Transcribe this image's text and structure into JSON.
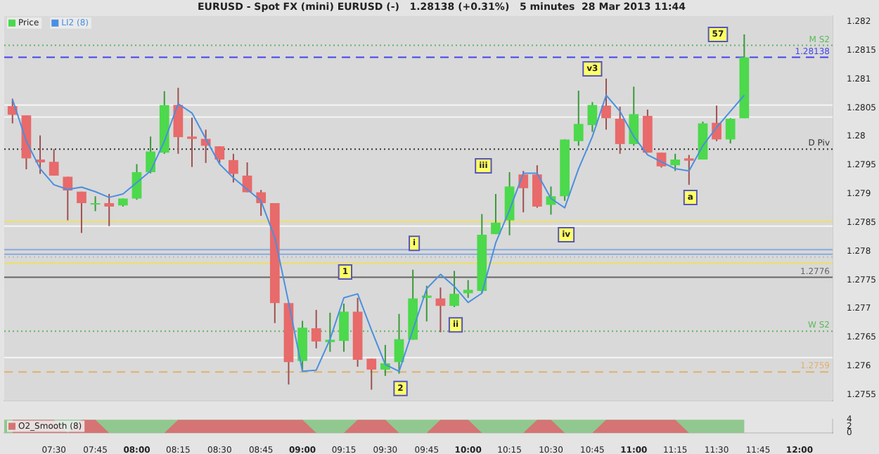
{
  "chart_data": [
    {
      "type": "candlestick",
      "title": "EURUSD - Spot FX (mini) EURUSD (-)   1.28138 (+0.31%)   5 minutes  28 Mar 2013 11:44",
      "x": [
        7.25,
        7.3333,
        7.4167,
        7.5,
        7.5833,
        7.6667,
        7.75,
        7.8333,
        7.9167,
        8,
        8.0833,
        8.1667,
        8.25,
        8.3333,
        8.4167,
        8.5,
        8.5833,
        8.6667,
        8.75,
        8.8333,
        8.9167,
        9,
        9.0833,
        9.1667,
        9.25,
        9.3333,
        9.4167,
        9.5,
        9.5833,
        9.6667,
        9.75,
        9.8333,
        9.9167,
        10,
        10.0833,
        10.1667,
        10.25,
        10.3333,
        10.4167,
        10.5,
        10.5833,
        10.6667,
        10.75,
        10.8333,
        10.9167,
        11,
        11.0833,
        11.1667,
        11.25,
        11.3333,
        11.4167,
        11.5,
        11.5833,
        11.6667
      ],
      "series": [
        {
          "type": "candlestick",
          "name": "Price",
          "ohlc": [
            [
              1.28053,
              1.28066,
              1.28023,
              1.28038
            ],
            [
              1.28037,
              1.28037,
              1.27943,
              1.27962
            ],
            [
              1.2796,
              1.28002,
              1.27935,
              1.27955
            ],
            [
              1.27956,
              1.27978,
              1.27932,
              1.27932
            ],
            [
              1.2793,
              1.2793,
              1.27854,
              1.27906
            ],
            [
              1.27904,
              1.27904,
              1.27832,
              1.27884
            ],
            [
              1.27884,
              1.27896,
              1.2787,
              1.27884
            ],
            [
              1.27884,
              1.279,
              1.27844,
              1.27878
            ],
            [
              1.2788,
              1.27892,
              1.27878,
              1.27892
            ],
            [
              1.27892,
              1.27952,
              1.2789,
              1.27938
            ],
            [
              1.27938,
              1.28,
              1.27936,
              1.27974
            ],
            [
              1.27972,
              1.28079,
              1.2797,
              1.28055
            ],
            [
              1.28055,
              1.28085,
              1.2797,
              1.27999
            ],
            [
              1.28,
              1.28033,
              1.27947,
              1.27996
            ],
            [
              1.27996,
              1.28012,
              1.27954,
              1.27984
            ],
            [
              1.27983,
              1.27983,
              1.27954,
              1.2796
            ],
            [
              1.27959,
              1.2797,
              1.2792,
              1.27935
            ],
            [
              1.27932,
              1.27955,
              1.27903,
              1.27903
            ],
            [
              1.27903,
              1.27907,
              1.27862,
              1.27884
            ],
            [
              1.27884,
              1.27884,
              1.27675,
              1.2771
            ],
            [
              1.2771,
              1.2771,
              1.27568,
              1.27607
            ],
            [
              1.27609,
              1.27679,
              1.27591,
              1.27667
            ],
            [
              1.27666,
              1.27698,
              1.27631,
              1.27643
            ],
            [
              1.27642,
              1.27693,
              1.27625,
              1.27646
            ],
            [
              1.27644,
              1.27709,
              1.27625,
              1.27695
            ],
            [
              1.27695,
              1.27719,
              1.27599,
              1.27611
            ],
            [
              1.27613,
              1.27613,
              1.27559,
              1.27594
            ],
            [
              1.27594,
              1.27637,
              1.27583,
              1.27605
            ],
            [
              1.27607,
              1.27691,
              1.27587,
              1.27647
            ],
            [
              1.27646,
              1.27768,
              1.27646,
              1.27718
            ],
            [
              1.27719,
              1.2774,
              1.27678,
              1.27723
            ],
            [
              1.27718,
              1.27737,
              1.27659,
              1.27705
            ],
            [
              1.27705,
              1.27766,
              1.27703,
              1.27726
            ],
            [
              1.27727,
              1.2775,
              1.27719,
              1.27733
            ],
            [
              1.27731,
              1.27865,
              1.27727,
              1.27829
            ],
            [
              1.2783,
              1.279,
              1.2783,
              1.2785
            ],
            [
              1.27854,
              1.27938,
              1.27828,
              1.27913
            ],
            [
              1.27934,
              1.2794,
              1.27868,
              1.2791
            ],
            [
              1.27934,
              1.2795,
              1.27876,
              1.27878
            ],
            [
              1.27881,
              1.27913,
              1.27864,
              1.27896
            ],
            [
              1.27896,
              1.27995,
              1.27888,
              1.27995
            ],
            [
              1.27992,
              1.2808,
              1.27984,
              1.28022
            ],
            [
              1.2802,
              1.2806,
              1.28008,
              1.28055
            ],
            [
              1.28054,
              1.28101,
              1.28012,
              1.28032
            ],
            [
              1.28031,
              1.28052,
              1.2797,
              1.27987
            ],
            [
              1.27987,
              1.28087,
              1.27984,
              1.28039
            ],
            [
              1.28036,
              1.28047,
              1.27972,
              1.27972
            ],
            [
              1.27972,
              1.27972,
              1.27946,
              1.27948
            ],
            [
              1.2795,
              1.2797,
              1.2794,
              1.2796
            ],
            [
              1.27962,
              1.27968,
              1.27916,
              1.27958
            ],
            [
              1.2796,
              1.28026,
              1.2796,
              1.28023
            ],
            [
              1.28024,
              1.28054,
              1.27992,
              1.27995
            ],
            [
              1.27995,
              1.28032,
              1.27988,
              1.28031
            ],
            [
              1.28032,
              1.28178,
              1.28032,
              1.28138
            ]
          ]
        },
        {
          "type": "line",
          "name": "LI2 (8)",
          "color": "#4a8fe0",
          "values": [
            1.28065,
            1.27992,
            1.27944,
            1.27916,
            1.27908,
            1.27912,
            1.27904,
            1.27894,
            1.279,
            1.2792,
            1.2794,
            1.27992,
            1.28057,
            1.28041,
            1.27996,
            1.27952,
            1.27928,
            1.27908,
            1.27888,
            1.27824,
            1.27711,
            1.27591,
            1.27593,
            1.27647,
            1.27719,
            1.27726,
            1.27663,
            1.27603,
            1.27591,
            1.27663,
            1.27735,
            1.2776,
            1.27739,
            1.27711,
            1.27727,
            1.27815,
            1.27872,
            1.27936,
            1.27936,
            1.27892,
            1.27876,
            1.27944,
            1.28,
            1.28072,
            1.28044,
            1.28,
            1.27968,
            1.27956,
            1.27944,
            1.2794,
            1.27984,
            1.28016,
            1.28044,
            1.28072
          ]
        }
      ],
      "xlim": [
        7.2,
        12.2
      ],
      "ylim": [
        1.2754,
        1.2821
      ],
      "yticks": [
        1.2755,
        1.276,
        1.2765,
        1.277,
        1.2775,
        1.278,
        1.2785,
        1.279,
        1.2795,
        1.28,
        1.2805,
        1.281,
        1.2815,
        1.282
      ],
      "tick_labels": "y",
      "legend": "top left",
      "ref_lines": [
        {
          "axis": "y",
          "value": 1.28159,
          "label": "M S2",
          "color": "#5cb85c",
          "line_style": "dotted"
        },
        {
          "axis": "y",
          "value": 1.28138,
          "label": "1.28138",
          "color": "#4444ee",
          "line_style": "dashed"
        },
        {
          "axis": "y",
          "value": 1.28055,
          "color": "#f6f6f6",
          "line_style": "solid"
        },
        {
          "axis": "y",
          "value": 1.28034,
          "color": "#f6f6f6",
          "line_style": "solid"
        },
        {
          "axis": "y",
          "value": 1.27978,
          "label": "D Piv",
          "color": "#333333",
          "line_style": "dotted"
        },
        {
          "axis": "y",
          "value": 1.27852,
          "color": "#eee060",
          "line_style": "solid"
        },
        {
          "axis": "y",
          "value": 1.27844,
          "color": "#f6f6f6",
          "line_style": "solid"
        },
        {
          "axis": "y",
          "value": 1.27803,
          "color": "#88aadd",
          "line_style": "solid"
        },
        {
          "axis": "y",
          "value": 1.27795,
          "color": "#88aadd",
          "line_style": "solid"
        },
        {
          "axis": "y",
          "value": 1.2779,
          "color": "#bbbbbb",
          "line_style": "dotted"
        },
        {
          "axis": "y",
          "value": 1.27779,
          "color": "#eee060",
          "line_style": "solid"
        },
        {
          "axis": "y",
          "value": 1.27755,
          "label": "1.2776",
          "color": "#666666",
          "line_style": "solid"
        },
        {
          "axis": "y",
          "value": 1.27661,
          "label": "W S2",
          "color": "#5cb85c",
          "line_style": "dotted"
        },
        {
          "axis": "y",
          "value": 1.27615,
          "color": "#f6f6f6",
          "line_style": "solid"
        },
        {
          "axis": "y",
          "value": 1.2759,
          "label": "1.2759",
          "color": "#e0b070",
          "line_style": "dashed"
        }
      ],
      "annotations": [
        {
          "text": "57",
          "x": 11.508,
          "y": 1.28178
        },
        {
          "text": "v3",
          "x": 10.75,
          "y": 1.28118
        },
        {
          "text": "iii",
          "x": 10.092,
          "y": 1.27949
        },
        {
          "text": "a",
          "x": 11.342,
          "y": 1.27894
        },
        {
          "text": "iv",
          "x": 10.592,
          "y": 1.27829
        },
        {
          "text": "i",
          "x": 9.675,
          "y": 1.27814
        },
        {
          "text": "1",
          "x": 9.258,
          "y": 1.27764
        },
        {
          "text": "ii",
          "x": 9.925,
          "y": 1.27672
        },
        {
          "text": "2",
          "x": 9.592,
          "y": 1.27561
        }
      ]
    },
    {
      "type": "area",
      "x": [
        7.25,
        7.3333,
        7.4167,
        7.5,
        7.5833,
        7.6667,
        7.75,
        7.8333,
        7.9167,
        8,
        8.0833,
        8.1667,
        8.25,
        8.3333,
        8.4167,
        8.5,
        8.5833,
        8.6667,
        8.75,
        8.8333,
        8.9167,
        9,
        9.0833,
        9.1667,
        9.25,
        9.3333,
        9.4167,
        9.5,
        9.5833,
        9.6667,
        9.75,
        9.8333,
        9.9167,
        10,
        10.0833,
        10.1667,
        10.25,
        10.3333,
        10.4167,
        10.5,
        10.5833,
        10.6667,
        10.75,
        10.8333,
        10.9167,
        11,
        11.0833,
        11.1667,
        11.25,
        11.3333,
        11.4167,
        11.5,
        11.5833,
        11.6667
      ],
      "series": [
        {
          "name": "O2_Smooth (8)",
          "color": "#d57474",
          "values": [
            4,
            4,
            4,
            4,
            0,
            4,
            4,
            0,
            0,
            0,
            0,
            0,
            4,
            4,
            4,
            4,
            4,
            4,
            4,
            4,
            4,
            4,
            0,
            0,
            0,
            4,
            4,
            4,
            0,
            0,
            0,
            4,
            4,
            4,
            0,
            0,
            0,
            0,
            4,
            4,
            0,
            0,
            0,
            4,
            4,
            4,
            4,
            4,
            4,
            0,
            0,
            0,
            0,
            0
          ]
        }
      ],
      "bands": [
        {
          "axis": "x",
          "from": 7.2,
          "to": 11.6667,
          "color": "#90c890"
        }
      ],
      "xlim": [
        7.2,
        12.2
      ],
      "xticks": [
        {
          "value": 7.5,
          "label": "07:30"
        },
        {
          "value": 7.75,
          "label": "07:45"
        },
        {
          "value": 8,
          "label": "08:00"
        },
        {
          "value": 8.25,
          "label": "08:15"
        },
        {
          "value": 8.5,
          "label": "08:30"
        },
        {
          "value": 8.75,
          "label": "08:45"
        },
        {
          "value": 9,
          "label": "09:00"
        },
        {
          "value": 9.25,
          "label": "09:15"
        },
        {
          "value": 9.5,
          "label": "09:30"
        },
        {
          "value": 9.75,
          "label": "09:45"
        },
        {
          "value": 10,
          "label": "10:00"
        },
        {
          "value": 10.25,
          "label": "10:15"
        },
        {
          "value": 10.5,
          "label": "10:30"
        },
        {
          "value": 10.75,
          "label": "10:45"
        },
        {
          "value": 11,
          "label": "11:00"
        },
        {
          "value": 11.25,
          "label": "11:15"
        },
        {
          "value": 11.5,
          "label": "11:30"
        },
        {
          "value": 11.75,
          "label": "11:45"
        },
        {
          "value": 12,
          "label": "12:00"
        }
      ],
      "ylim": [
        0,
        4
      ],
      "yticks": [
        0,
        2,
        4
      ],
      "legend": "left"
    }
  ]
}
